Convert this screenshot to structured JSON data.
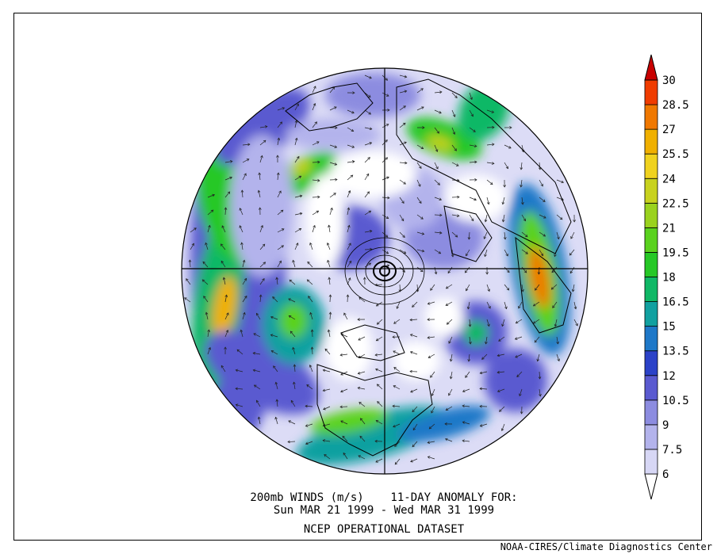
{
  "map": {
    "caption_line1": "200mb WINDS (m/s)    11-DAY ANOMALY FOR:",
    "caption_line2": "Sun MAR 21 1999 - Wed MAR 31 1999",
    "caption_line3": "NCEP OPERATIONAL DATASET",
    "credit": "NOAA-CIRES/Climate Diagnostics Center",
    "projection": "north-polar-stereographic"
  },
  "colorbar": {
    "levels": [
      "6",
      "7.5",
      "9",
      "10.5",
      "12",
      "13.5",
      "15",
      "16.5",
      "18",
      "19.5",
      "21",
      "22.5",
      "24",
      "25.5",
      "27",
      "28.5",
      "30"
    ],
    "colors": [
      "#ffffff",
      "#d7d7f5",
      "#b3b3ec",
      "#8c8ce0",
      "#5a5ad0",
      "#2b42c8",
      "#1e78c8",
      "#11a0a0",
      "#10b866",
      "#26c826",
      "#5ad21e",
      "#9ad21e",
      "#c8d21e",
      "#f0d21e",
      "#f0b000",
      "#f07800",
      "#f03c00",
      "#c80000"
    ]
  }
}
